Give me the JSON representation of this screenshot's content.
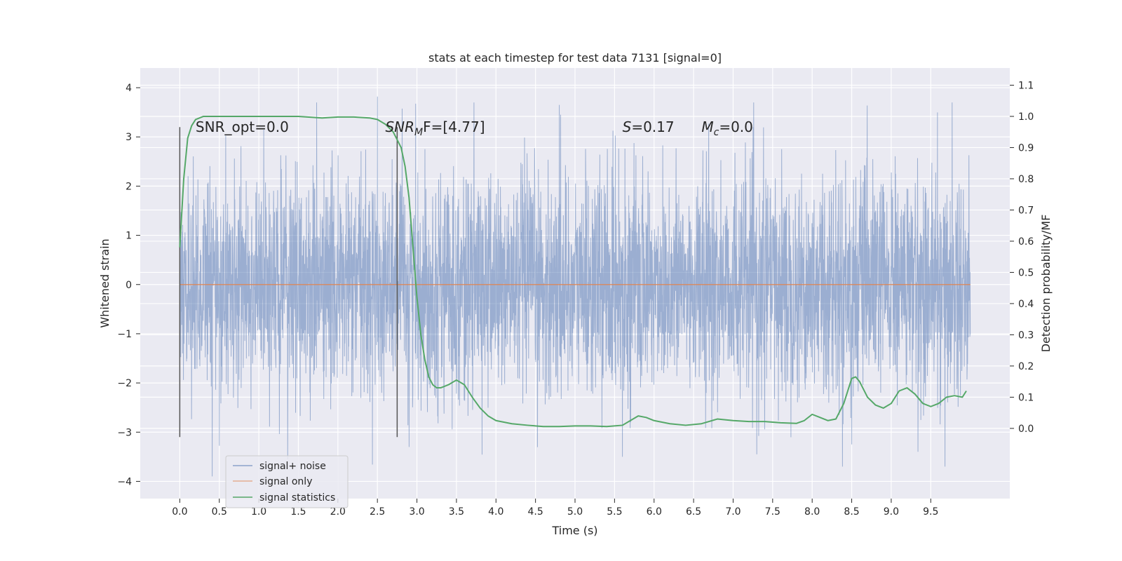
{
  "chart_data": {
    "type": "line",
    "title": "stats at each timestep for test data 7131 [signal=0]",
    "xlabel": "Time (s)",
    "ylabel": "Whitened strain",
    "y2label": "Detection probability/MF",
    "xlim": [
      -0.5,
      10.5
    ],
    "ylim": [
      -4.35,
      4.4
    ],
    "y2lim": [
      -0.225,
      1.155
    ],
    "x_ticks": [
      0.0,
      0.5,
      1.0,
      1.5,
      2.0,
      2.5,
      3.0,
      3.5,
      4.0,
      4.5,
      5.0,
      5.5,
      6.0,
      6.5,
      7.0,
      7.5,
      8.0,
      8.5,
      9.0,
      9.5
    ],
    "x_tick_labels": [
      "0.0",
      "0.5",
      "1.0",
      "1.5",
      "2.0",
      "2.5",
      "3.0",
      "3.5",
      "4.0",
      "4.5",
      "5.0",
      "5.5",
      "6.0",
      "6.5",
      "7.0",
      "7.5",
      "8.0",
      "8.5",
      "9.0",
      "9.5"
    ],
    "y_ticks": [
      -4,
      -3,
      -2,
      -1,
      0,
      1,
      2,
      3,
      4
    ],
    "y_tick_labels": [
      "−4",
      "−3",
      "−2",
      "−1",
      "0",
      "1",
      "2",
      "3",
      "4"
    ],
    "y2_ticks": [
      0.0,
      0.1,
      0.2,
      0.3,
      0.4,
      0.5,
      0.6,
      0.7,
      0.8,
      0.9,
      1.0,
      1.1
    ],
    "y2_tick_labels": [
      "0.0",
      "0.1",
      "0.2",
      "0.3",
      "0.4",
      "0.5",
      "0.6",
      "0.7",
      "0.8",
      "0.9",
      "1.0",
      "1.1"
    ],
    "grid": true,
    "legend_position": "lower-left",
    "legend": [
      "signal+ noise",
      "signal only",
      "signal statistics"
    ],
    "series": [
      {
        "name": "signal+ noise",
        "axis": "left",
        "color": "#4c72b0",
        "style": "dense noise, approx. N(0, 1.1), t from 0.0 to 10.0 s",
        "x_range": [
          0.0,
          10.0
        ],
        "sigma": 1.1,
        "peaks": [
          {
            "x": 0.41,
            "y": -3.9
          },
          {
            "x": 2.5,
            "y": 3.82
          },
          {
            "x": 2.9,
            "y": -3.3
          },
          {
            "x": 4.8,
            "y": 3.65
          },
          {
            "x": 5.6,
            "y": -3.5
          },
          {
            "x": 7.3,
            "y": -3.45
          },
          {
            "x": 8.5,
            "y": -3.25
          },
          {
            "x": 9.68,
            "y": 4.05
          },
          {
            "x": 9.68,
            "y": -3.7
          }
        ]
      },
      {
        "name": "signal only",
        "axis": "left",
        "color": "#dd8452",
        "x": [
          0.0,
          10.0
        ],
        "y": [
          0.0,
          0.0
        ]
      },
      {
        "name": "signal statistics",
        "axis": "right",
        "color": "#55a868",
        "x": [
          0.0,
          0.05,
          0.1,
          0.15,
          0.2,
          0.3,
          0.5,
          1.0,
          1.5,
          1.8,
          2.0,
          2.2,
          2.4,
          2.5,
          2.6,
          2.7,
          2.8,
          2.85,
          2.9,
          2.95,
          3.0,
          3.05,
          3.1,
          3.15,
          3.2,
          3.25,
          3.3,
          3.4,
          3.5,
          3.6,
          3.7,
          3.8,
          3.9,
          4.0,
          4.2,
          4.4,
          4.6,
          4.8,
          5.0,
          5.2,
          5.4,
          5.6,
          5.7,
          5.8,
          5.9,
          6.0,
          6.2,
          6.4,
          6.6,
          6.8,
          7.0,
          7.2,
          7.4,
          7.6,
          7.8,
          7.9,
          8.0,
          8.1,
          8.2,
          8.3,
          8.4,
          8.5,
          8.55,
          8.6,
          8.7,
          8.8,
          8.9,
          9.0,
          9.1,
          9.2,
          9.3,
          9.4,
          9.5,
          9.6,
          9.7,
          9.8,
          9.9,
          9.95
        ],
        "y": [
          0.58,
          0.8,
          0.93,
          0.97,
          0.99,
          1.0,
          1.0,
          1.0,
          1.0,
          0.995,
          0.998,
          0.998,
          0.995,
          0.99,
          0.975,
          0.95,
          0.9,
          0.84,
          0.74,
          0.58,
          0.42,
          0.3,
          0.22,
          0.165,
          0.14,
          0.13,
          0.13,
          0.14,
          0.155,
          0.14,
          0.1,
          0.065,
          0.04,
          0.025,
          0.015,
          0.01,
          0.006,
          0.006,
          0.008,
          0.008,
          0.006,
          0.01,
          0.025,
          0.04,
          0.035,
          0.025,
          0.015,
          0.01,
          0.015,
          0.03,
          0.025,
          0.022,
          0.022,
          0.018,
          0.016,
          0.025,
          0.045,
          0.035,
          0.025,
          0.03,
          0.08,
          0.16,
          0.165,
          0.15,
          0.1,
          0.075,
          0.065,
          0.08,
          0.12,
          0.13,
          0.11,
          0.08,
          0.07,
          0.08,
          0.1,
          0.105,
          0.1,
          0.12
        ]
      }
    ],
    "vertical_lines": [
      {
        "x": 0.0,
        "ymin": -3.1,
        "ymax": 3.2,
        "color": "#555555"
      },
      {
        "x": 2.75,
        "ymin": -3.1,
        "ymax": 3.2,
        "color": "#555555"
      }
    ],
    "annotations": [
      {
        "x": 0.2,
        "y": 3.2,
        "text": "SNR_opt=0.0"
      },
      {
        "x": 2.6,
        "y": 3.2,
        "text_italic": "SNR",
        "text_sub": "M",
        "text_after": "F=[4.77]"
      },
      {
        "x": 5.6,
        "y": 3.2,
        "text_italic": "S",
        "text_after": "=0.17"
      },
      {
        "x": 6.6,
        "y": 3.2,
        "text_italic": "M",
        "text_sub": "c",
        "text_after": "=0.0"
      }
    ],
    "colors": {
      "plot_background": "#eaeaf2",
      "grid": "#ffffff",
      "text": "#262626"
    }
  }
}
